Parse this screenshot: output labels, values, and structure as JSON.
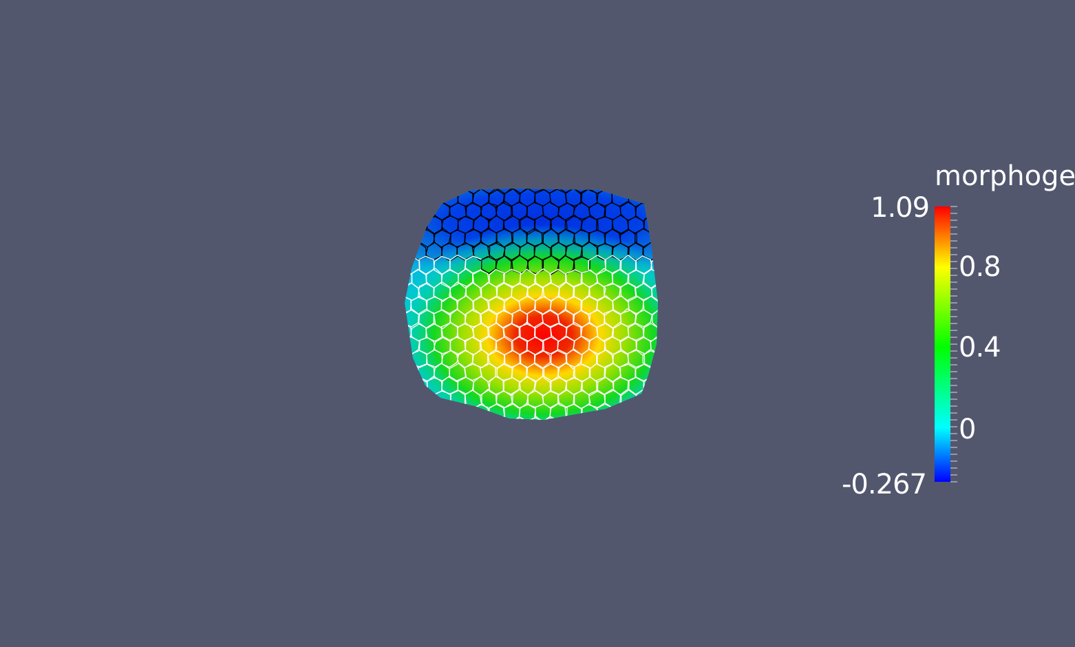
{
  "legend": {
    "title": "morphoge",
    "max_label": "1.09",
    "min_label": "-0.267",
    "ticks": [
      "0.8",
      "0.4",
      "0"
    ],
    "range": [
      -0.267,
      1.09
    ]
  },
  "colors": {
    "background": "#52576e",
    "map_low": "#0000ff",
    "map_zero": "#00ffff",
    "map_mid": "#00ff00",
    "map_high_mid": "#ffff00",
    "map_high": "#ff0000",
    "cell_edges_top": "#000000",
    "cell_edges_bottom": "#ffffff"
  }
}
